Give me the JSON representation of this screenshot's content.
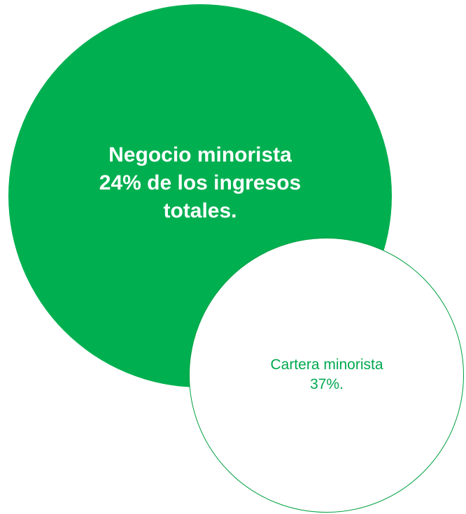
{
  "colors": {
    "main_fill": "#00B050",
    "sub_fill": "#FFFFFF",
    "sub_outline": "#00A040",
    "sub_text": "#00A84F",
    "main_text": "#FFFFFF"
  },
  "main_circle": {
    "lines": [
      "Negocio minorista",
      "24% de los ingresos",
      "totales."
    ]
  },
  "sub_circle": {
    "lines": [
      "Cartera minorista",
      "37%."
    ]
  }
}
